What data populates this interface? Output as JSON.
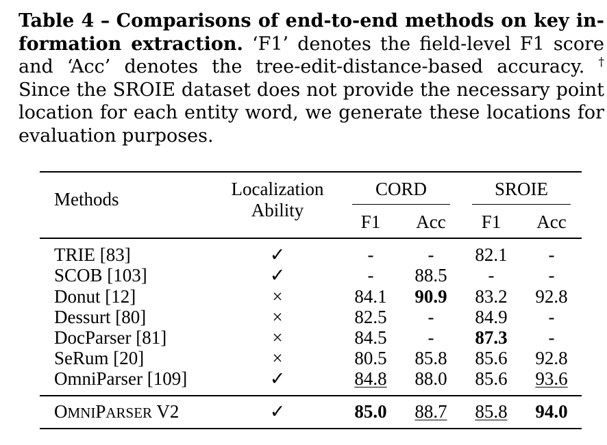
{
  "caption": {
    "label": "Table 4",
    "dash": "–",
    "bold_title": "Comparisons of end-to-end methods on key in-formation extraction.",
    "text_before_dagger": "‘F1’ denotes the field-level F1 score and ‘Acc’ denotes the tree-edit-distance-based accuracy.",
    "dagger": "†",
    "text_after_dagger": "Since the SROIE dataset does not provide the necessary point location for each entity word, we generate these locations for evaluation purposes."
  },
  "table": {
    "headers": {
      "methods": "Methods",
      "localization_line1": "Localization",
      "localization_line2": "Ability",
      "cord": "CORD",
      "sroie": "SROIE",
      "f1": "F1",
      "acc": "Acc"
    },
    "rows": [
      {
        "method": "TRIE [83]",
        "loc": "✓",
        "cord_f1": "-",
        "cord_acc": "-",
        "sroie_f1": "82.1",
        "sroie_acc": "-"
      },
      {
        "method": "SCOB [103]",
        "loc": "✓",
        "cord_f1": "-",
        "cord_acc": "88.5",
        "sroie_f1": "-",
        "sroie_acc": "-"
      },
      {
        "method": "Donut [12]",
        "loc": "×",
        "cord_f1": "84.1",
        "cord_acc": "90.9",
        "sroie_f1": "83.2",
        "sroie_acc": "92.8"
      },
      {
        "method": "Dessurt [80]",
        "loc": "×",
        "cord_f1": "82.5",
        "cord_acc": "-",
        "sroie_f1": "84.9",
        "sroie_acc": "-"
      },
      {
        "method": "DocParser [81]",
        "loc": "×",
        "cord_f1": "84.5",
        "cord_acc": "-",
        "sroie_f1": "87.3",
        "sroie_acc": "-"
      },
      {
        "method": "SeRum [20]",
        "loc": "×",
        "cord_f1": "80.5",
        "cord_acc": "85.8",
        "sroie_f1": "85.6",
        "sroie_acc": "92.8"
      },
      {
        "method": "OmniParser [109]",
        "loc": "✓",
        "cord_f1": "84.8",
        "cord_acc": "88.0",
        "sroie_f1": "85.6",
        "sroie_acc": "93.6"
      }
    ],
    "final_row": {
      "method_O": "O",
      "method_MNI": "MNI",
      "method_P": "P",
      "method_ARSER": "ARSER",
      "method_V2": " V2",
      "loc": "✓",
      "cord_f1": "85.0",
      "cord_acc": "88.7",
      "sroie_f1": "85.8",
      "sroie_acc": "94.0"
    }
  }
}
